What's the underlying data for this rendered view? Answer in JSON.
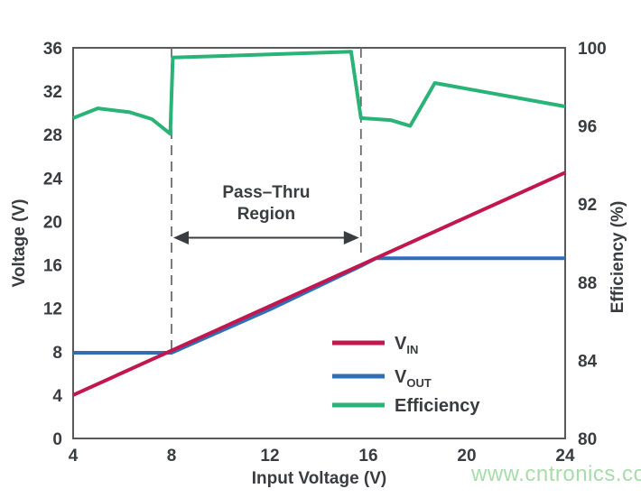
{
  "watermark": {
    "text": "www.cntronics.com",
    "color": "#A9DCAB"
  },
  "chart_data": {
    "type": "line",
    "title": "",
    "xlabel": "Input Voltage (V)",
    "ylabel_left": "Voltage (V)",
    "ylabel_right": "Efficiency (%)",
    "xlim": [
      4,
      24
    ],
    "ylim_left": [
      0,
      36
    ],
    "ylim_right": [
      80,
      100
    ],
    "x_ticks": [
      4,
      8,
      12,
      16,
      20,
      24
    ],
    "left_ticks": [
      0,
      4,
      8,
      12,
      16,
      20,
      24,
      28,
      32,
      36
    ],
    "right_ticks": [
      80,
      84,
      88,
      92,
      96,
      100
    ],
    "grid": false,
    "legend_position": "inside-bottom-right",
    "colors": {
      "axis": "#58595B",
      "text": "#3A3C40",
      "dash": "#6B6C6E"
    },
    "series": [
      {
        "name": "VIN",
        "legend_main": "V",
        "legend_sub": "IN",
        "color": "#C2164E",
        "axis": "left",
        "points": [
          [
            4,
            4
          ],
          [
            24,
            24.5
          ]
        ]
      },
      {
        "name": "VOUT",
        "legend_main": "V",
        "legend_sub": "OUT",
        "color": "#2E6FB7",
        "axis": "left",
        "points": [
          [
            4,
            7.9
          ],
          [
            8,
            7.9
          ],
          [
            12,
            11.9
          ],
          [
            15.7,
            15.9
          ],
          [
            16.3,
            16.6
          ],
          [
            24,
            16.6
          ]
        ]
      },
      {
        "name": "Efficiency",
        "legend_main": "Efficiency",
        "legend_sub": "",
        "color": "#29B377",
        "axis": "right",
        "points": [
          [
            4,
            96.4
          ],
          [
            5,
            96.9
          ],
          [
            6.3,
            96.7
          ],
          [
            7.2,
            96.35
          ],
          [
            7.95,
            95.6
          ],
          [
            8.05,
            99.5
          ],
          [
            15.3,
            99.8
          ],
          [
            15.7,
            96.4
          ],
          [
            16.9,
            96.3
          ],
          [
            17.7,
            96.0
          ],
          [
            18.7,
            98.2
          ],
          [
            24,
            97.0
          ]
        ]
      }
    ],
    "annotation": {
      "label_line1": "Pass–Thru",
      "label_line2": "Region",
      "x1": 8,
      "x2": 15.7,
      "line1_bottom_v": 8,
      "line2_bottom_v": 16.9,
      "arrow_v": 18.5
    }
  }
}
